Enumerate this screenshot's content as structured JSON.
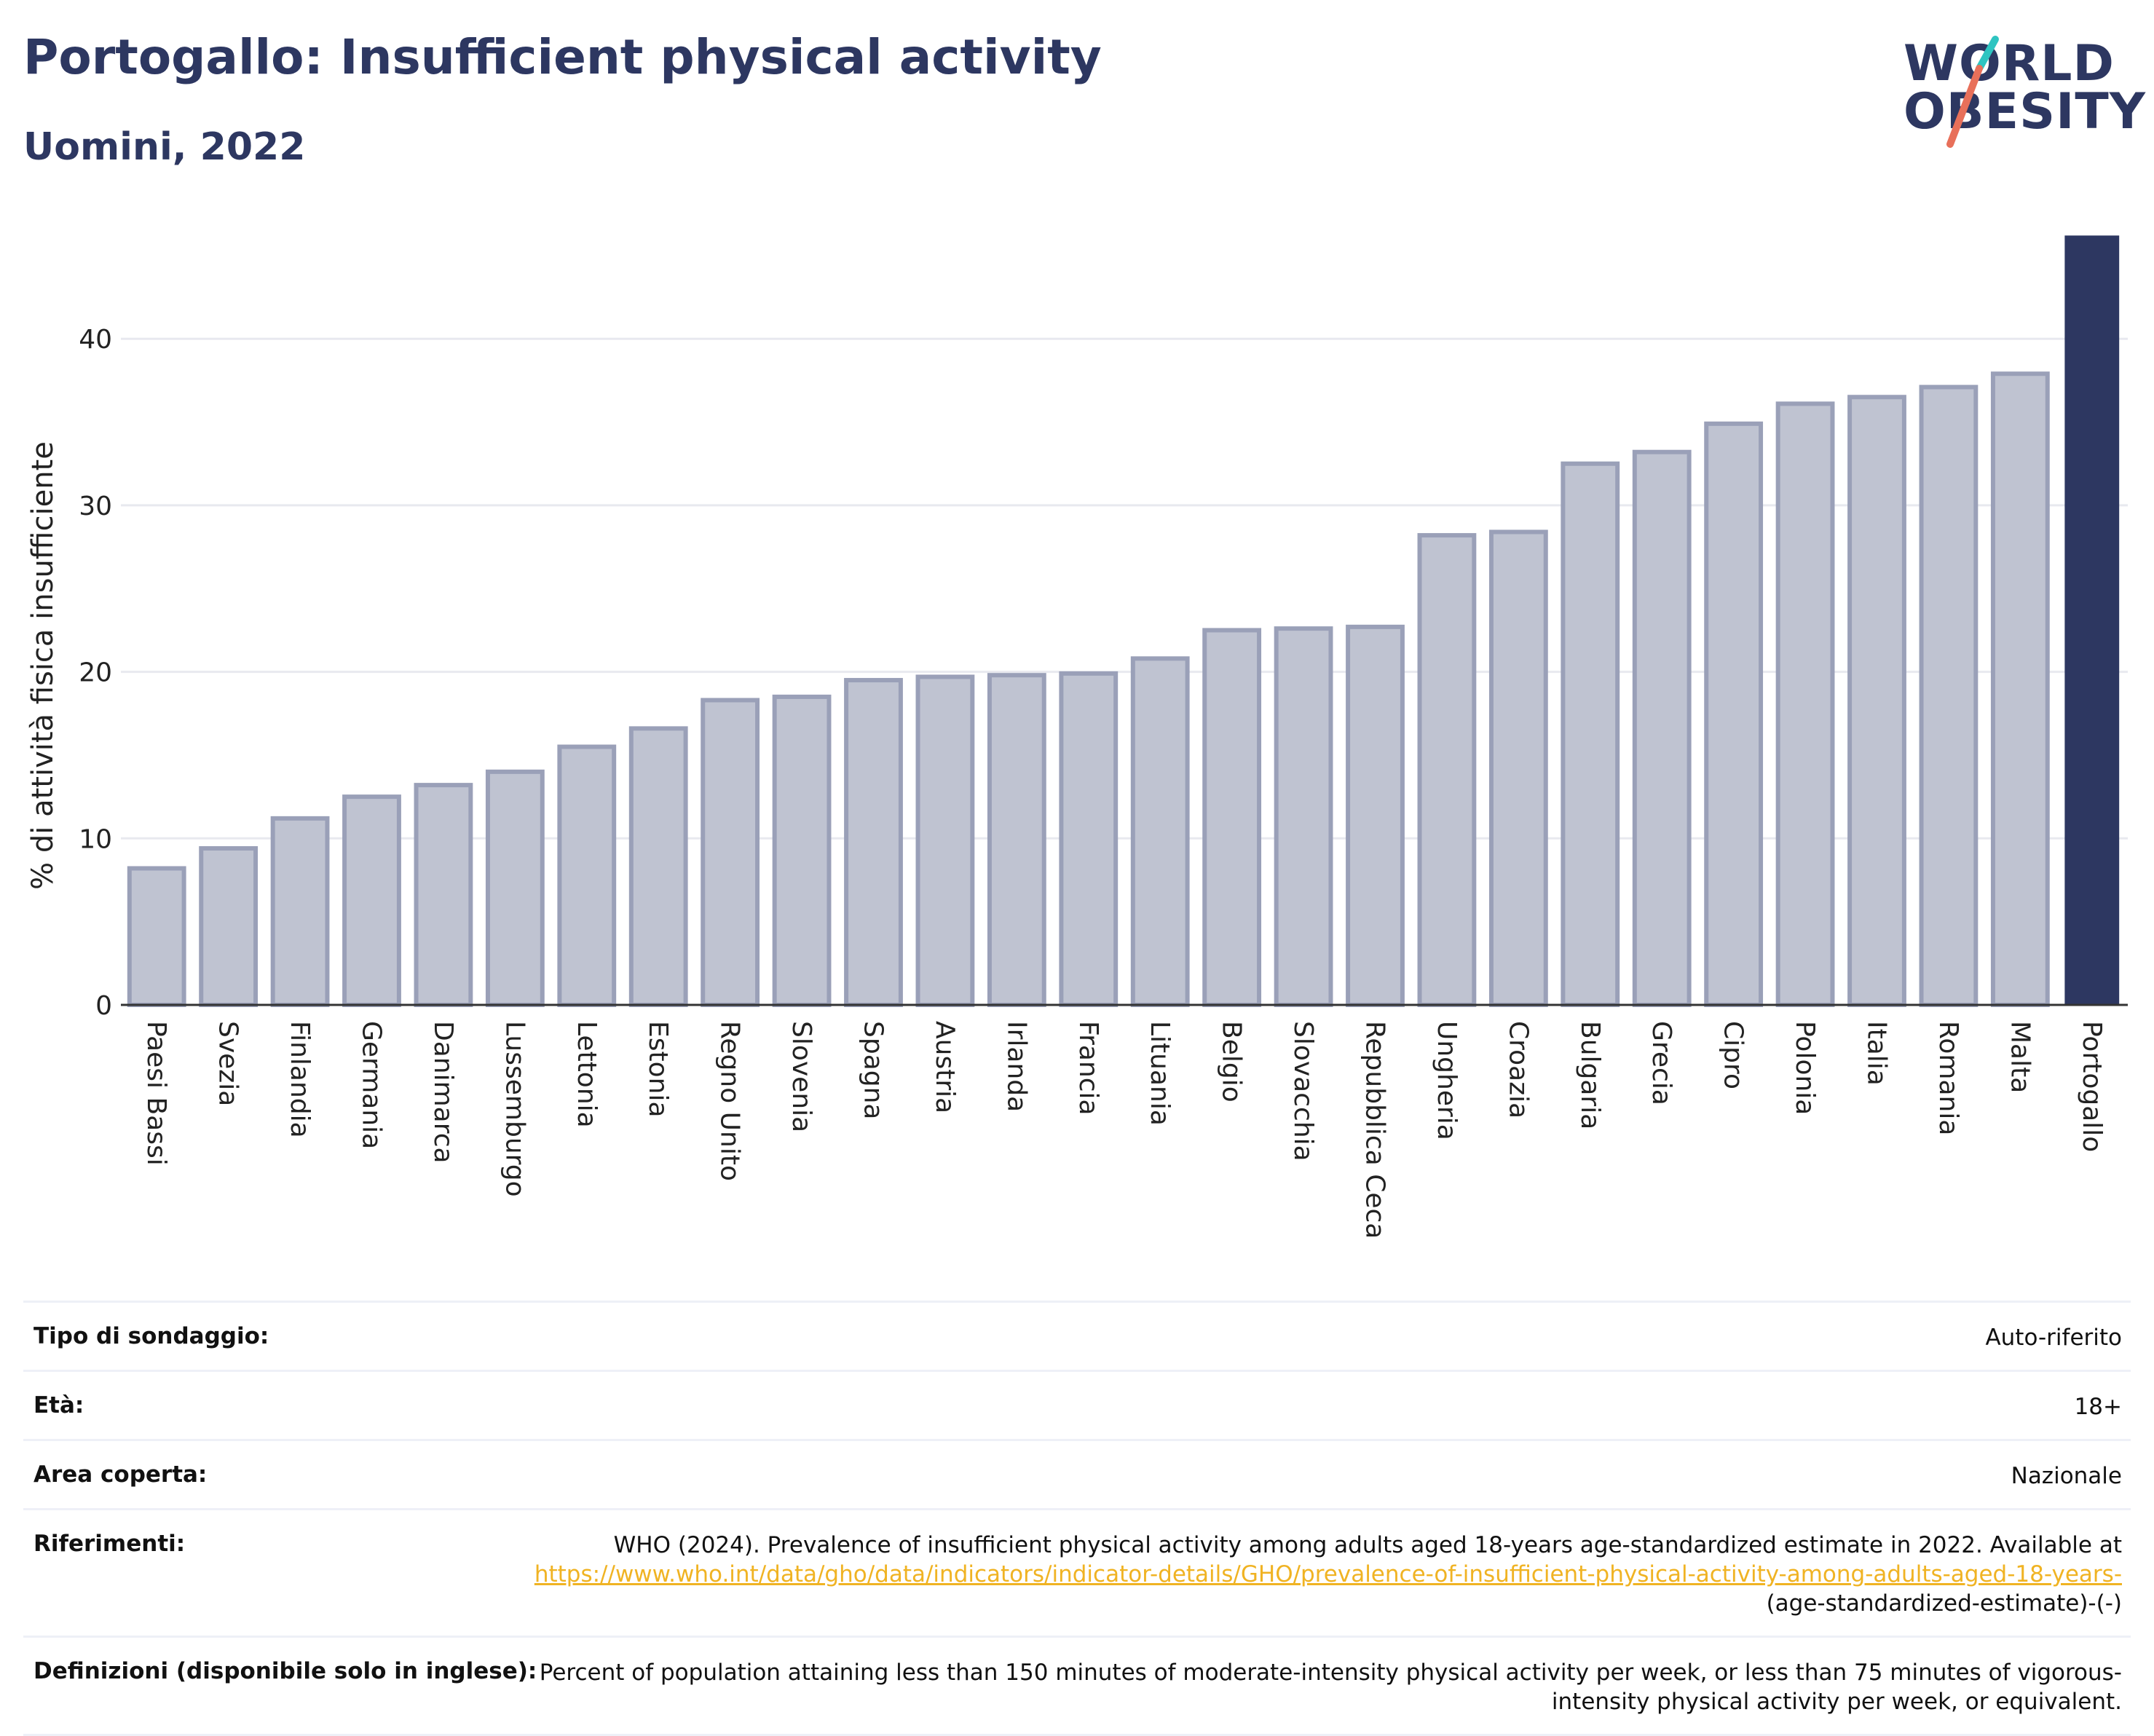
{
  "header": {
    "title": "Portogallo: Insufficient physical activity",
    "subtitle": "Uomini, 2022"
  },
  "logo": {
    "line1": "WORLD",
    "line2": "OBESITY",
    "accent_colors": [
      "#2ec4c1",
      "#e8705a"
    ]
  },
  "chart_data": {
    "type": "bar",
    "ylabel": "% di attività fisica insufficiente",
    "xlabel": "",
    "ylim": [
      0,
      46
    ],
    "yticks": [
      0,
      10,
      20,
      30,
      40
    ],
    "grid": true,
    "highlight": "Portogallo",
    "colors": {
      "default": "#bfc3d1",
      "default_border": "#9aa0b8",
      "highlight": "#2d3761",
      "grid": "#e8e9ef",
      "axis": "#333333"
    },
    "categories": [
      "Paesi Bassi",
      "Svezia",
      "Finlandia",
      "Germania",
      "Danimarca",
      "Lussemburgo",
      "Lettonia",
      "Estonia",
      "Regno Unito",
      "Slovenia",
      "Spagna",
      "Austria",
      "Irlanda",
      "Francia",
      "Lituania",
      "Belgio",
      "Slovacchia",
      "Repubblica Ceca",
      "Ungheria",
      "Croazia",
      "Bulgaria",
      "Grecia",
      "Cipro",
      "Polonia",
      "Italia",
      "Romania",
      "Malta",
      "Portogallo"
    ],
    "values": [
      8.2,
      9.4,
      11.2,
      12.5,
      13.2,
      14.0,
      15.5,
      16.6,
      18.3,
      18.5,
      19.5,
      19.7,
      19.8,
      19.9,
      20.8,
      22.5,
      22.6,
      22.7,
      28.2,
      28.4,
      32.5,
      33.2,
      34.9,
      36.1,
      36.5,
      37.1,
      37.9,
      46.2
    ]
  },
  "meta": {
    "survey_label": "Tipo di sondaggio:",
    "survey_value": "Auto-riferito",
    "age_label": "Età:",
    "age_value": "18+",
    "area_label": "Area coperta:",
    "area_value": "Nazionale",
    "refs_label": "Riferimenti:",
    "refs_text": "WHO (2024). Prevalence of insufficient physical activity among adults aged 18-years age-standardized estimate in 2022. Available at",
    "refs_link": "https://www.who.int/data/gho/data/indicators/indicator-details/GHO/prevalence-of-insufficient-physical-activity-among-adults-aged-18-years-",
    "refs_suffix": "(age-standardized-estimate)-(-)",
    "defs_label": "Definizioni (disponibile solo in inglese):",
    "defs_value": "Percent of population attaining less than 150 minutes of moderate-intensity physical activity per week, or less than 75 minutes of vigorous-intensity physical activity per week, or equivalent."
  }
}
